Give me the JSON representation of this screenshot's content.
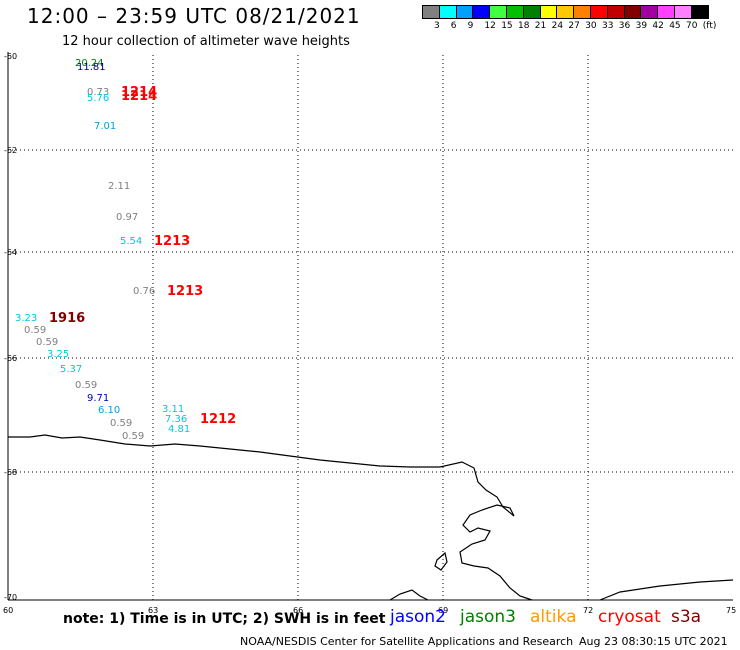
{
  "header": {
    "title": "12:00 – 23:59 UTC 08/21/2021",
    "subtitle": "12 hour collection of altimeter wave heights"
  },
  "color_scale": {
    "colors": [
      "#808080",
      "#00ffff",
      "#00a0ff",
      "#0000ff",
      "#40ff40",
      "#00c000",
      "#008000",
      "#ffff00",
      "#ffc800",
      "#ff8000",
      "#ff0000",
      "#c00000",
      "#800000",
      "#a000a0",
      "#ff40ff",
      "#ff80ff",
      "#000000"
    ],
    "labels": [
      "3",
      "6",
      "9",
      "12",
      "15",
      "18",
      "21",
      "24",
      "27",
      "30",
      "33",
      "36",
      "39",
      "42",
      "45",
      "70",
      "(ft)"
    ]
  },
  "axes": {
    "lat_labels": [
      "-60",
      "-62",
      "-64",
      "-66",
      "-68",
      "-70"
    ],
    "lon_labels": [
      "60",
      "63",
      "66",
      "69",
      "72",
      "75"
    ]
  },
  "observations": [
    {
      "text": "20.24",
      "color": "#008000"
    },
    {
      "text": "11.81",
      "color": "#000080"
    },
    {
      "text": "0.73",
      "color": "#808080"
    },
    {
      "text": "5.76",
      "color": "#00c8e0"
    },
    {
      "text": "7.01",
      "color": "#00a0e0"
    },
    {
      "text": "2.11",
      "color": "#808080"
    },
    {
      "text": "0.97",
      "color": "#808080"
    },
    {
      "text": "5.54",
      "color": "#00c8e0"
    },
    {
      "text": "0.76",
      "color": "#808080"
    },
    {
      "text": "3.23",
      "color": "#00c8e0"
    },
    {
      "text": "0.59",
      "color": "#808080"
    },
    {
      "text": "0.59",
      "color": "#808080"
    },
    {
      "text": "3.25",
      "color": "#00c8e0"
    },
    {
      "text": "5.37",
      "color": "#00c8e0"
    },
    {
      "text": "0.59",
      "color": "#808080"
    },
    {
      "text": "9.71",
      "color": "#0000c0"
    },
    {
      "text": "6.10",
      "color": "#00a0e0"
    },
    {
      "text": "0.59",
      "color": "#808080"
    },
    {
      "text": "0.59",
      "color": "#808080"
    },
    {
      "text": "3.11",
      "color": "#00c8e0"
    },
    {
      "text": "7.36",
      "color": "#00c8e0"
    },
    {
      "text": "4.81",
      "color": "#00c8e0"
    }
  ],
  "pass_times": [
    {
      "text": "1214",
      "color": "#ff0000"
    },
    {
      "text": "1214",
      "color": "#ff0000"
    },
    {
      "text": "1213",
      "color": "#ff0000"
    },
    {
      "text": "1213",
      "color": "#ff0000"
    },
    {
      "text": "1916",
      "color": "#800000"
    },
    {
      "text": "1212",
      "color": "#ff0000"
    }
  ],
  "footer": {
    "note": "note:  1) Time is in UTC;  2) SWH is in feet",
    "satellites": [
      {
        "name": "jason2",
        "color": "#0000ff"
      },
      {
        "name": "jason3",
        "color": "#008000"
      },
      {
        "name": "altika",
        "color": "#ff9900"
      },
      {
        "name": "cryosat",
        "color": "#ff0000"
      },
      {
        "name": "s3a",
        "color": "#800000"
      }
    ],
    "credit": "NOAA/NESDIS Center for Satellite Applications and Research",
    "timestamp": "Aug 23 08:30:15 UTC 2021"
  }
}
